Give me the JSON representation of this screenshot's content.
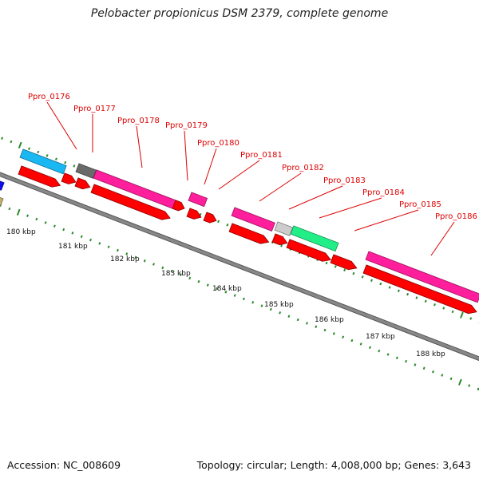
{
  "title": "Pelobacter propionicus DSM 2379, complete genome",
  "footer": {
    "accession": "Accession: NC_008609",
    "topology": "Topology: circular; Length: 4,008,000 bp; Genes: 3,643"
  },
  "scale": {
    "labels": [
      "180 kbp",
      "181 kbp",
      "182 kbp",
      "183 kbp",
      "184 kbp",
      "185 kbp",
      "186 kbp",
      "187 kbp",
      "188 kbp"
    ]
  },
  "gene_labels": [
    "Ppro_0176",
    "Ppro_0177",
    "Ppro_0178",
    "Ppro_0179",
    "Ppro_0180",
    "Ppro_0181",
    "Ppro_0182",
    "Ppro_0183",
    "Ppro_0184",
    "Ppro_0185",
    "Ppro_0186"
  ],
  "colors": {
    "cds": "#ff0000",
    "label": "#dd0000",
    "backbone": "#888888",
    "tick": "#2a8a2a",
    "feature_pink": "#ff1e9b",
    "feature_cyan": "#19b8f2",
    "feature_darkgray": "#6a6a6a",
    "feature_lightgray": "#cccccc",
    "feature_green": "#22ee88",
    "feature_blue": "#1010ee",
    "feature_khaki": "#c0b070"
  }
}
